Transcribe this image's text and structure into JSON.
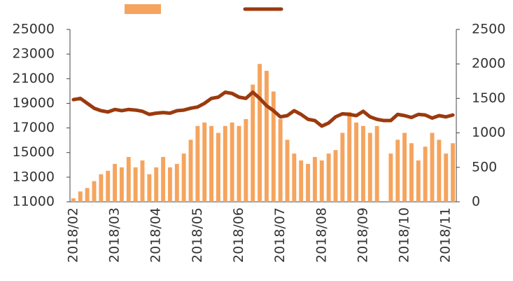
{
  "chart_data": {
    "type": "bar-line",
    "categories": [
      "2018/02",
      null,
      null,
      null,
      null,
      null,
      "2018/03",
      null,
      null,
      null,
      null,
      null,
      "2018/04",
      null,
      null,
      null,
      null,
      null,
      "2018/05",
      null,
      null,
      null,
      null,
      null,
      "2018/06",
      null,
      null,
      null,
      null,
      null,
      "2018/07",
      null,
      null,
      null,
      null,
      null,
      "2018/08",
      null,
      null,
      null,
      null,
      null,
      "2018/09",
      null,
      null,
      null,
      null,
      null,
      "2018/10",
      null,
      null,
      null,
      null,
      null,
      "2018/11",
      null
    ],
    "series": [
      {
        "kind": "bar",
        "axis": "y2",
        "color": "#f5a45e",
        "values": [
          50,
          150,
          200,
          300,
          400,
          450,
          550,
          500,
          650,
          500,
          600,
          400,
          500,
          650,
          500,
          550,
          700,
          900,
          1100,
          1150,
          1100,
          1000,
          1100,
          1150,
          1100,
          1200,
          1700,
          2000,
          1900,
          1600,
          1200,
          900,
          700,
          600,
          550,
          650,
          600,
          700,
          750,
          1000,
          1300,
          1150,
          1100,
          1000,
          1100,
          0,
          700,
          900,
          1000,
          850,
          600,
          800,
          1000,
          900,
          700,
          850
        ]
      },
      {
        "kind": "line",
        "axis": "y",
        "color": "#9b3a0e",
        "values": [
          19300,
          19400,
          19000,
          18600,
          18400,
          18300,
          18500,
          18400,
          18500,
          18450,
          18350,
          18100,
          18200,
          18250,
          18200,
          18400,
          18450,
          18600,
          18700,
          19000,
          19400,
          19500,
          19900,
          19800,
          19500,
          19400,
          19900,
          19400,
          18800,
          18400,
          17900,
          18000,
          18400,
          18100,
          17700,
          17600,
          17150,
          17400,
          17900,
          18150,
          18100,
          18000,
          18350,
          17900,
          17700,
          17600,
          17600,
          18100,
          18000,
          17850,
          18100,
          18050,
          17800,
          18000,
          17900,
          18050
        ]
      }
    ],
    "ylim": [
      11000,
      25000
    ],
    "yticks": [
      11000,
      13000,
      15000,
      17000,
      19000,
      21000,
      23000,
      25000
    ],
    "y2lim": [
      0,
      2500
    ],
    "y2ticks": [
      0,
      500,
      1000,
      1500,
      2000,
      2500
    ],
    "legend": "top"
  }
}
